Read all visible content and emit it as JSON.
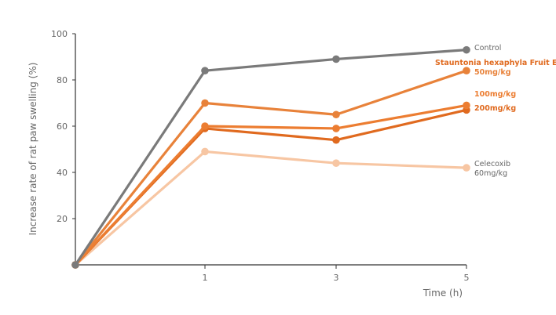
{
  "chart_data": {
    "type": "line",
    "xlabel": "Time (h)",
    "ylabel": "Increase rate  of rat paw swelling (%)",
    "x": [
      0,
      1,
      3,
      5
    ],
    "x_tick_labels": [
      "1",
      "3",
      "5"
    ],
    "y_tick_labels": [
      "20",
      "40",
      "60",
      "80",
      "100"
    ],
    "ylim": [
      0,
      100
    ],
    "grid": false,
    "group_label": "Stauntonia hexaphyla Fruit Extract",
    "series": [
      {
        "name": "Control",
        "color": "#7a7a7a",
        "values": [
          0,
          84,
          89,
          93
        ]
      },
      {
        "name": "50mg/kg",
        "color": "#e8823a",
        "values": [
          0,
          70,
          65,
          84
        ]
      },
      {
        "name": "100mg/kg",
        "color": "#ec7d31",
        "values": [
          0,
          60,
          59,
          69
        ]
      },
      {
        "name": "200mg/kg",
        "color": "#e06a1f",
        "values": [
          0,
          59,
          54,
          67
        ]
      },
      {
        "name": "Celecoxib\n60mg/kg",
        "color": "#f7c6a3",
        "values": [
          0,
          49,
          44,
          42
        ]
      }
    ],
    "colors": {
      "axis": "#333333",
      "group_label": "#e06a1f",
      "text": "#666666"
    }
  }
}
